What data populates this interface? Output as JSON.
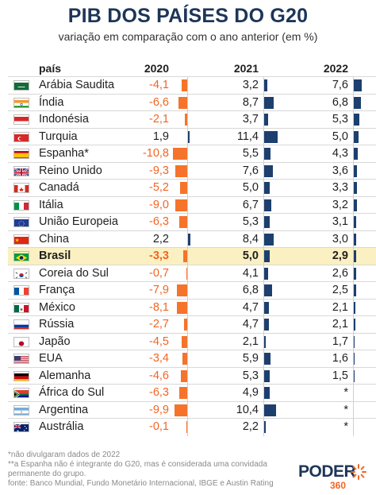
{
  "title": "PIB DOS PAÍSES DO G20",
  "subtitle": "variação em comparação com o ano anterior (em %)",
  "header": {
    "country": "país",
    "y1": "2020",
    "y2": "2021",
    "y3": "2022"
  },
  "chart_data": {
    "type": "table",
    "title": "PIB DOS PAÍSES DO G20",
    "subtitle": "variação em comparação com o ano anterior (em %)",
    "columns": [
      "2020",
      "2021",
      "2022"
    ],
    "rows": [
      {
        "flag": "sa",
        "name": "Arábia Saudita",
        "v": [
          -4.1,
          3.2,
          7.6
        ],
        "t": [
          "-4,1",
          "3,2",
          "7,6"
        ]
      },
      {
        "flag": "in",
        "name": "Índia",
        "v": [
          -6.6,
          8.7,
          6.8
        ],
        "t": [
          "-6,6",
          "8,7",
          "6,8"
        ]
      },
      {
        "flag": "id",
        "name": "Indonésia",
        "v": [
          -2.1,
          3.7,
          5.3
        ],
        "t": [
          "-2,1",
          "3,7",
          "5,3"
        ]
      },
      {
        "flag": "tr",
        "name": "Turquia",
        "v": [
          1.9,
          11.4,
          5.0
        ],
        "t": [
          "1,9",
          "11,4",
          "5,0"
        ]
      },
      {
        "flag": "es",
        "name": "Espanha*",
        "v": [
          -10.8,
          5.5,
          4.3
        ],
        "t": [
          "-10,8",
          "5,5",
          "4,3"
        ]
      },
      {
        "flag": "gb",
        "name": "Reino Unido",
        "v": [
          -9.3,
          7.6,
          3.6
        ],
        "t": [
          "-9,3",
          "7,6",
          "3,6"
        ]
      },
      {
        "flag": "ca",
        "name": "Canadá",
        "v": [
          -5.2,
          5.0,
          3.3
        ],
        "t": [
          "-5,2",
          "5,0",
          "3,3"
        ]
      },
      {
        "flag": "it",
        "name": "Itália",
        "v": [
          -9.0,
          6.7,
          3.2
        ],
        "t": [
          "-9,0",
          "6,7",
          "3,2"
        ]
      },
      {
        "flag": "eu",
        "name": "União Europeia",
        "v": [
          -6.3,
          5.3,
          3.1
        ],
        "t": [
          "-6,3",
          "5,3",
          "3,1"
        ]
      },
      {
        "flag": "cn",
        "name": "China",
        "v": [
          2.2,
          8.4,
          3.0
        ],
        "t": [
          "2,2",
          "8,4",
          "3,0"
        ]
      },
      {
        "flag": "br",
        "name": "Brasil",
        "v": [
          -3.3,
          5.0,
          2.9
        ],
        "t": [
          "-3,3",
          "5,0",
          "2,9"
        ],
        "highlight": true
      },
      {
        "flag": "kr",
        "name": "Coreia do Sul",
        "v": [
          -0.7,
          4.1,
          2.6
        ],
        "t": [
          "-0,7",
          "4,1",
          "2,6"
        ]
      },
      {
        "flag": "fr",
        "name": "França",
        "v": [
          -7.9,
          6.8,
          2.5
        ],
        "t": [
          "-7,9",
          "6,8",
          "2,5"
        ]
      },
      {
        "flag": "mx",
        "name": "México",
        "v": [
          -8.1,
          4.7,
          2.1
        ],
        "t": [
          "-8,1",
          "4,7",
          "2,1"
        ]
      },
      {
        "flag": "ru",
        "name": "Rússia",
        "v": [
          -2.7,
          4.7,
          2.1
        ],
        "t": [
          "-2,7",
          "4,7",
          "2,1"
        ]
      },
      {
        "flag": "jp",
        "name": "Japão",
        "v": [
          -4.5,
          2.1,
          1.7
        ],
        "t": [
          "-4,5",
          "2,1",
          "1,7"
        ]
      },
      {
        "flag": "us",
        "name": "EUA",
        "v": [
          -3.4,
          5.9,
          1.6
        ],
        "t": [
          "-3,4",
          "5,9",
          "1,6"
        ]
      },
      {
        "flag": "de",
        "name": "Alemanha",
        "v": [
          -4.6,
          5.3,
          1.5
        ],
        "t": [
          "-4,6",
          "5,3",
          "1,5"
        ]
      },
      {
        "flag": "za",
        "name": "África do Sul",
        "v": [
          -6.3,
          4.9,
          null
        ],
        "t": [
          "-6,3",
          "4,9",
          "*"
        ]
      },
      {
        "flag": "ar",
        "name": "Argentina",
        "v": [
          -9.9,
          10.4,
          null
        ],
        "t": [
          "-9,9",
          "10,4",
          "*"
        ]
      },
      {
        "flag": "au",
        "name": "Austrália",
        "v": [
          -0.1,
          2.2,
          null
        ],
        "t": [
          "-0,1",
          "2,2",
          "*"
        ]
      }
    ],
    "colors": {
      "negative": "#f5732a",
      "positive": "#1d3f6e",
      "highlight_row": "#fbf0c2"
    }
  },
  "footnotes": [
    "*não divulgaram dados de 2022",
    "**a Espanha não é integrante do G20, mas é considerada uma convidada",
    "permanente do grupo.",
    "fonte: Banco Mundial, Fundo Monetário Internacional, IBGE e Austin Rating"
  ],
  "logo": {
    "word": "PODER",
    "number": "360",
    "colors": {
      "word": "#1d3557",
      "accent": "#f26522"
    }
  }
}
